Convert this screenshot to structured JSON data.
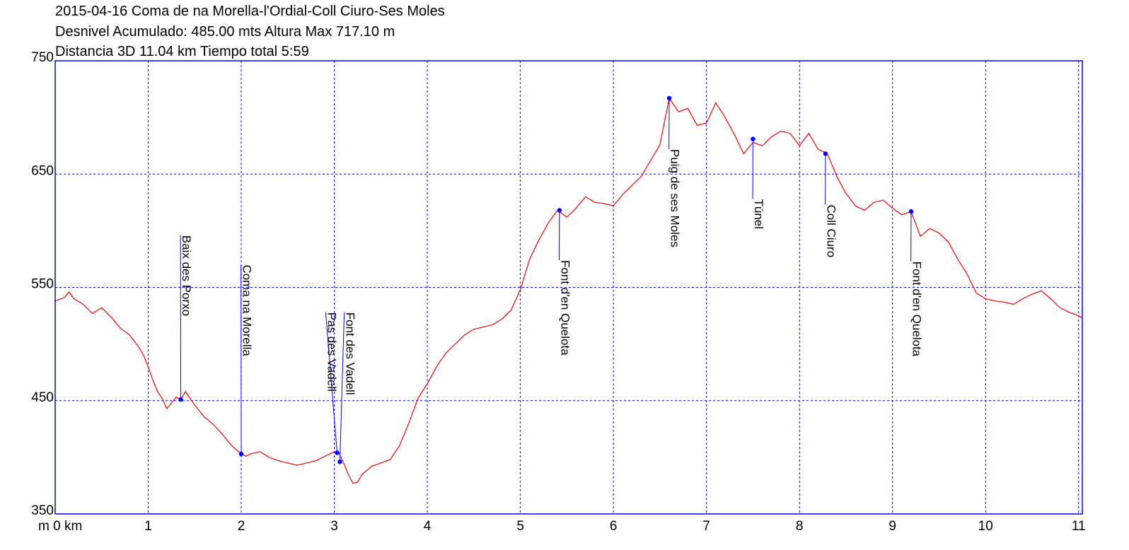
{
  "header": {
    "title_lines": [
      "2015-04-16 Coma de na Morella-l'Ordial-Coll Ciuro-Ses Moles",
      "Desnivel Acumulado: 485.00 mts  Altura Max 717.10 m",
      "Distancia 3D 11.04 km  Tiempo total 5:59"
    ]
  },
  "chart_data": {
    "type": "line",
    "xlim": [
      0,
      11.04
    ],
    "ylim": [
      350,
      750
    ],
    "grid": true,
    "x_unit_label": "m 0 km",
    "x_ticks": [
      {
        "value": 0,
        "label": "m 0 km"
      },
      {
        "value": 1,
        "label": "1"
      },
      {
        "value": 2,
        "label": "2"
      },
      {
        "value": 3,
        "label": "3"
      },
      {
        "value": 4,
        "label": "4"
      },
      {
        "value": 5,
        "label": "5"
      },
      {
        "value": 6,
        "label": "6"
      },
      {
        "value": 7,
        "label": "7"
      },
      {
        "value": 8,
        "label": "8"
      },
      {
        "value": 9,
        "label": "9"
      },
      {
        "value": 10,
        "label": "10"
      },
      {
        "value": 11,
        "label": "11"
      }
    ],
    "y_ticks": [
      {
        "value": 750,
        "label": "750"
      },
      {
        "value": 650,
        "label": "650"
      },
      {
        "value": 550,
        "label": "550"
      },
      {
        "value": 450,
        "label": "450"
      },
      {
        "value": 350,
        "label": "350"
      }
    ],
    "colors": {
      "profile": "#ff0000",
      "grid": "#0000ff",
      "frame": "#0000ff",
      "waypoint": "#0000ff"
    },
    "series": [
      {
        "x": [
          0.0,
          0.1,
          0.15,
          0.2,
          0.3,
          0.4,
          0.5,
          0.6,
          0.7,
          0.8,
          0.9,
          0.95,
          1.0,
          1.05,
          1.1,
          1.15,
          1.2,
          1.25,
          1.3,
          1.35,
          1.4,
          1.45,
          1.5,
          1.6,
          1.7,
          1.8,
          1.9,
          2.0,
          2.05,
          2.1,
          2.2,
          2.3,
          2.4,
          2.5,
          2.6,
          2.7,
          2.8,
          2.9,
          3.0,
          3.05,
          3.1,
          3.15,
          3.2,
          3.25,
          3.3,
          3.4,
          3.5,
          3.6,
          3.7,
          3.8,
          3.9,
          4.0,
          4.1,
          4.2,
          4.3,
          4.4,
          4.5,
          4.6,
          4.7,
          4.8,
          4.9,
          5.0,
          5.1,
          5.2,
          5.3,
          5.4,
          5.5,
          5.6,
          5.7,
          5.8,
          5.9,
          6.0,
          6.1,
          6.2,
          6.3,
          6.4,
          6.5,
          6.6,
          6.7,
          6.8,
          6.9,
          7.0,
          7.1,
          7.2,
          7.3,
          7.4,
          7.5,
          7.6,
          7.7,
          7.8,
          7.9,
          8.0,
          8.1,
          8.2,
          8.3,
          8.4,
          8.5,
          8.6,
          8.7,
          8.8,
          8.9,
          9.0,
          9.1,
          9.2,
          9.3,
          9.4,
          9.5,
          9.6,
          9.7,
          9.8,
          9.9,
          10.0,
          10.1,
          10.2,
          10.3,
          10.4,
          10.5,
          10.6,
          10.7,
          10.8,
          10.9,
          11.0,
          11.04
        ],
        "y": [
          538,
          541,
          546,
          540,
          535,
          527,
          532,
          524,
          514,
          508,
          497,
          490,
          480,
          468,
          458,
          452,
          443,
          448,
          453,
          451,
          458,
          452,
          446,
          436,
          429,
          420,
          410,
          403,
          401,
          403,
          405,
          400,
          397,
          395,
          393,
          395,
          397,
          401,
          405,
          404,
          395,
          385,
          377,
          378,
          385,
          392,
          395,
          398,
          410,
          430,
          452,
          465,
          480,
          492,
          500,
          508,
          513,
          515,
          517,
          522,
          530,
          548,
          575,
          592,
          607,
          618,
          612,
          620,
          630,
          625,
          624,
          622,
          632,
          640,
          648,
          662,
          676,
          717,
          705,
          708,
          693,
          695,
          713,
          700,
          685,
          668,
          678,
          675,
          683,
          688,
          686,
          675,
          686,
          672,
          668,
          648,
          633,
          622,
          618,
          625,
          627,
          620,
          614,
          617,
          595,
          602,
          598,
          590,
          575,
          562,
          545,
          540,
          538,
          537,
          535,
          540,
          544,
          547,
          540,
          532,
          528,
          525,
          523
        ]
      }
    ],
    "waypoints": [
      {
        "x": 1.35,
        "y": 451,
        "label": "Baix des Porxo",
        "label_x": 1.37,
        "label_y": 596
      },
      {
        "x": 2.0,
        "y": 403,
        "label": "Coma na Morella",
        "label_x": 2.02,
        "label_y": 570
      },
      {
        "x": 3.03,
        "y": 404,
        "label": "Pas des Vadell",
        "label_x": 2.93,
        "label_y": 528
      },
      {
        "x": 3.06,
        "y": 396,
        "label": "Font des Vadell",
        "label_x": 3.13,
        "label_y": 528
      },
      {
        "x": 5.42,
        "y": 618,
        "label": "Font d'en Quelota",
        "label_x": 5.44,
        "label_y": 574
      },
      {
        "x": 6.6,
        "y": 717,
        "label": "Puig de ses Moles",
        "label_x": 6.62,
        "label_y": 672
      },
      {
        "x": 7.5,
        "y": 681,
        "label": "Túnel",
        "label_x": 7.52,
        "label_y": 628
      },
      {
        "x": 8.28,
        "y": 668,
        "label": "Coll Ciuro",
        "label_x": 8.3,
        "label_y": 623
      },
      {
        "x": 9.2,
        "y": 617,
        "label": "Font d'en Quelota",
        "label_x": 9.22,
        "label_y": 573
      }
    ]
  }
}
